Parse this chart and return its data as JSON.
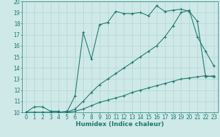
{
  "xlabel": "Humidex (Indice chaleur)",
  "xlim": [
    -0.5,
    23.5
  ],
  "ylim": [
    10,
    20
  ],
  "xticks": [
    0,
    1,
    2,
    3,
    4,
    5,
    6,
    7,
    8,
    9,
    10,
    11,
    12,
    13,
    14,
    15,
    16,
    17,
    18,
    19,
    20,
    21,
    22,
    23
  ],
  "yticks": [
    10,
    11,
    12,
    13,
    14,
    15,
    16,
    17,
    18,
    19,
    20
  ],
  "line_color": "#1a7a6e",
  "bg_color": "#cfe8e8",
  "grid_color": "#aacfcf",
  "line1_x": [
    0,
    1,
    2,
    3,
    4,
    4,
    5,
    5,
    6,
    7,
    8,
    9,
    10,
    11,
    12,
    13,
    14,
    15,
    16,
    17,
    18,
    19,
    20,
    21,
    22,
    23
  ],
  "line1_y": [
    10,
    10.5,
    10.5,
    10.1,
    10.1,
    10.0,
    10.1,
    10.0,
    11.5,
    17.2,
    14.8,
    17.9,
    18.1,
    19.1,
    18.9,
    18.9,
    19.0,
    18.7,
    19.6,
    19.1,
    19.2,
    19.3,
    19.1,
    18.2,
    13.2,
    13.3
  ],
  "line2_x": [
    0,
    1,
    2,
    3,
    4,
    5,
    6,
    7,
    8,
    9,
    10,
    11,
    12,
    13,
    14,
    15,
    16,
    17,
    18,
    19,
    20,
    21,
    22,
    23
  ],
  "line2_y": [
    10,
    10,
    10,
    10,
    10,
    10,
    10.3,
    11.0,
    11.8,
    12.5,
    13.0,
    13.5,
    14.0,
    14.5,
    15.0,
    15.5,
    16.0,
    16.8,
    17.8,
    19.0,
    19.2,
    16.8,
    15.5,
    14.2
  ],
  "line3_x": [
    0,
    1,
    2,
    3,
    4,
    5,
    6,
    7,
    8,
    9,
    10,
    11,
    12,
    13,
    14,
    15,
    16,
    17,
    18,
    19,
    20,
    21,
    22,
    23
  ],
  "line3_y": [
    10,
    10,
    10,
    10,
    10,
    10,
    10.1,
    10.3,
    10.6,
    10.9,
    11.1,
    11.3,
    11.5,
    11.8,
    12.0,
    12.2,
    12.4,
    12.6,
    12.8,
    13.0,
    13.1,
    13.2,
    13.3,
    13.2
  ],
  "marker": "+",
  "markersize": 3,
  "linewidth": 0.8,
  "xlabel_fontsize": 6.5,
  "tick_fontsize": 5.5
}
